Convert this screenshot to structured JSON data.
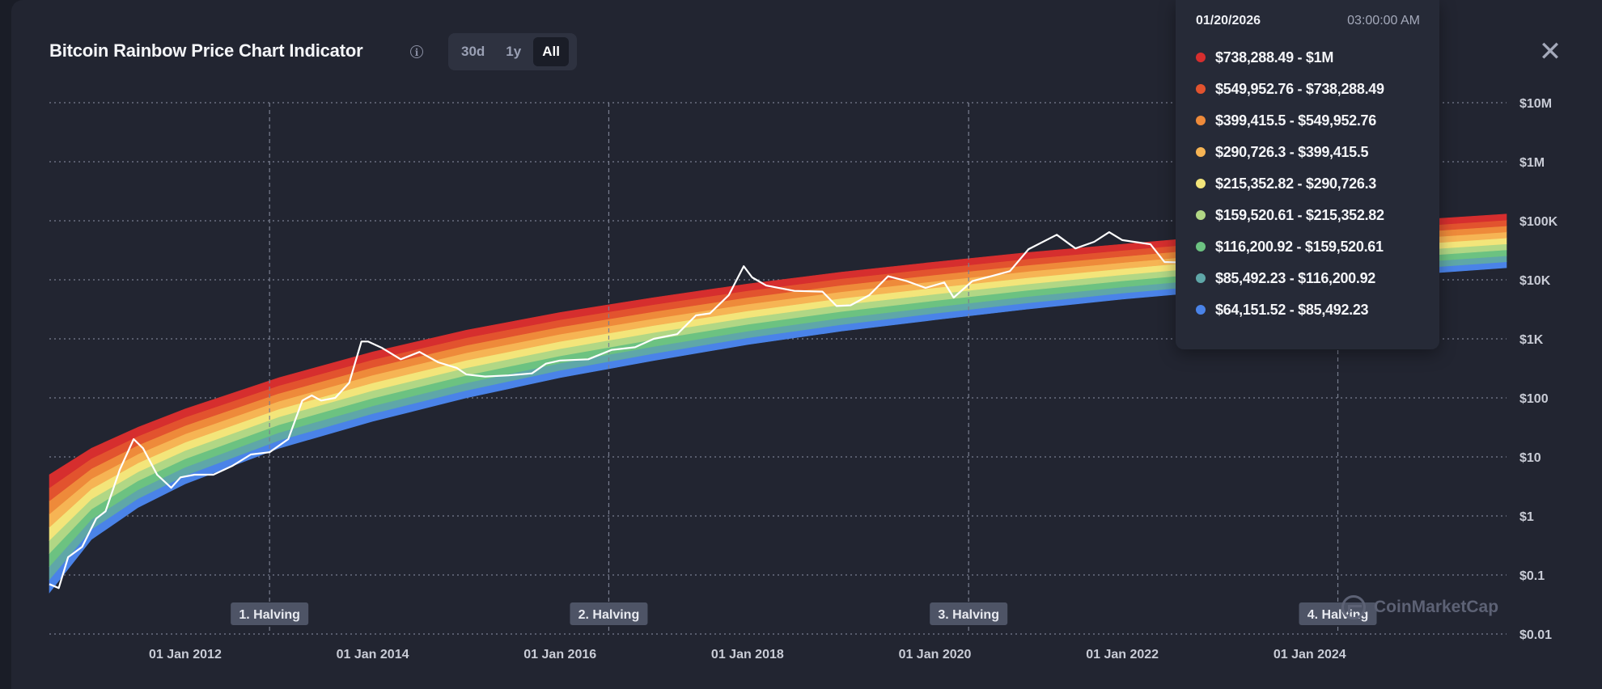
{
  "header": {
    "title": "Bitcoin Rainbow Price Chart Indicator",
    "range_options": [
      "30d",
      "1y",
      "All"
    ],
    "active_range": "All"
  },
  "tooltip": {
    "date": "01/20/2026",
    "time": "03:00:00 AM",
    "bands": [
      {
        "color": "#d62e2e",
        "label": "$738,288.49 - $1M"
      },
      {
        "color": "#e2532e",
        "label": "$549,952.76 - $738,288.49"
      },
      {
        "color": "#ee8a3a",
        "label": "$399,415.5 - $549,952.76"
      },
      {
        "color": "#f6b454",
        "label": "$290,726.3 - $399,415.5"
      },
      {
        "color": "#f3e57a",
        "label": "$215,352.82 - $290,726.3"
      },
      {
        "color": "#b1d785",
        "label": "$159,520.61 - $215,352.82"
      },
      {
        "color": "#6cc281",
        "label": "$116,200.92 - $159,520.61"
      },
      {
        "color": "#5fa7a8",
        "label": "$85,492.23 - $116,200.92"
      },
      {
        "color": "#4a83e8",
        "label": "$64,151.52 - $85,492.23"
      }
    ]
  },
  "watermark": "CoinMarketCap",
  "chart_data": {
    "type": "area",
    "y_scale": "log",
    "ylim": [
      0.01,
      10000000
    ],
    "y_ticks": [
      {
        "value": 10000000,
        "label": "$10M"
      },
      {
        "value": 1000000,
        "label": "$1M"
      },
      {
        "value": 100000,
        "label": "$100K"
      },
      {
        "value": 10000,
        "label": "$10K"
      },
      {
        "value": 1000,
        "label": "$1K"
      },
      {
        "value": 100,
        "label": "$100"
      },
      {
        "value": 10,
        "label": "$10"
      },
      {
        "value": 1,
        "label": "$1"
      },
      {
        "value": 0.1,
        "label": "$0.1"
      },
      {
        "value": 0.01,
        "label": "$0.01"
      }
    ],
    "xlim": [
      2010.55,
      2026.1
    ],
    "x_ticks": [
      {
        "value": 2012.0,
        "label": "01 Jan 2012"
      },
      {
        "value": 2014.0,
        "label": "01 Jan 2014"
      },
      {
        "value": 2016.0,
        "label": "01 Jan 2016"
      },
      {
        "value": 2018.0,
        "label": "01 Jan 2018"
      },
      {
        "value": 2020.0,
        "label": "01 Jan 2020"
      },
      {
        "value": 2022.0,
        "label": "01 Jan 2022"
      },
      {
        "value": 2024.0,
        "label": "01 Jan 2024"
      }
    ],
    "halvings": [
      {
        "x": 2012.9,
        "label": "1. Halving"
      },
      {
        "x": 2016.52,
        "label": "2. Halving"
      },
      {
        "x": 2020.36,
        "label": "3. Halving"
      },
      {
        "x": 2024.3,
        "label": "4. Halving"
      }
    ],
    "band_colors": [
      "#4a83e8",
      "#5fa7a8",
      "#6cc281",
      "#b1d785",
      "#f3e57a",
      "#f6b454",
      "#ee8a3a",
      "#e2532e",
      "#d62e2e"
    ],
    "band_lower_edge": [
      [
        2010.55,
        0.05
      ],
      [
        2011.0,
        0.4
      ],
      [
        2011.5,
        1.4
      ],
      [
        2012.0,
        3.5
      ],
      [
        2013.0,
        14
      ],
      [
        2014.0,
        40
      ],
      [
        2015.0,
        100
      ],
      [
        2016.0,
        220
      ],
      [
        2017.0,
        430
      ],
      [
        2018.0,
        800
      ],
      [
        2019.0,
        1350
      ],
      [
        2020.0,
        2100
      ],
      [
        2021.0,
        3200
      ],
      [
        2022.0,
        4700
      ],
      [
        2023.0,
        6500
      ],
      [
        2024.0,
        9000
      ],
      [
        2025.0,
        12000
      ],
      [
        2026.1,
        16000
      ]
    ],
    "band_top_edge": [
      [
        2010.55,
        5
      ],
      [
        2011.0,
        14
      ],
      [
        2011.5,
        32
      ],
      [
        2012.0,
        65
      ],
      [
        2013.0,
        220
      ],
      [
        2014.0,
        600
      ],
      [
        2015.0,
        1400
      ],
      [
        2016.0,
        2800
      ],
      [
        2017.0,
        5000
      ],
      [
        2018.0,
        8500
      ],
      [
        2019.0,
        13500
      ],
      [
        2020.0,
        20000
      ],
      [
        2021.0,
        29000
      ],
      [
        2022.0,
        40000
      ],
      [
        2023.0,
        55000
      ],
      [
        2024.0,
        75000
      ],
      [
        2025.0,
        100000
      ],
      [
        2026.1,
        130000
      ]
    ],
    "price_series": {
      "color": "#ffffff",
      "points": [
        [
          2010.55,
          0.07
        ],
        [
          2010.65,
          0.06
        ],
        [
          2010.75,
          0.2
        ],
        [
          2010.9,
          0.3
        ],
        [
          2011.05,
          0.9
        ],
        [
          2011.15,
          1.2
        ],
        [
          2011.3,
          6
        ],
        [
          2011.45,
          20
        ],
        [
          2011.55,
          14
        ],
        [
          2011.7,
          5
        ],
        [
          2011.85,
          3
        ],
        [
          2011.95,
          4.5
        ],
        [
          2012.1,
          5
        ],
        [
          2012.3,
          5
        ],
        [
          2012.5,
          7
        ],
        [
          2012.7,
          11
        ],
        [
          2012.9,
          12
        ],
        [
          2013.1,
          20
        ],
        [
          2013.25,
          90
        ],
        [
          2013.35,
          110
        ],
        [
          2013.45,
          90
        ],
        [
          2013.6,
          100
        ],
        [
          2013.75,
          180
        ],
        [
          2013.88,
          900
        ],
        [
          2013.95,
          900
        ],
        [
          2014.1,
          700
        ],
        [
          2014.3,
          450
        ],
        [
          2014.5,
          600
        ],
        [
          2014.7,
          400
        ],
        [
          2014.9,
          320
        ],
        [
          2015.0,
          250
        ],
        [
          2015.2,
          230
        ],
        [
          2015.45,
          240
        ],
        [
          2015.7,
          260
        ],
        [
          2015.85,
          380
        ],
        [
          2016.0,
          430
        ],
        [
          2016.3,
          450
        ],
        [
          2016.55,
          650
        ],
        [
          2016.8,
          720
        ],
        [
          2017.0,
          1000
        ],
        [
          2017.25,
          1200
        ],
        [
          2017.45,
          2500
        ],
        [
          2017.6,
          2700
        ],
        [
          2017.8,
          5500
        ],
        [
          2017.96,
          17000
        ],
        [
          2018.05,
          11000
        ],
        [
          2018.2,
          8000
        ],
        [
          2018.5,
          6500
        ],
        [
          2018.8,
          6300
        ],
        [
          2018.95,
          3600
        ],
        [
          2019.1,
          3700
        ],
        [
          2019.3,
          5500
        ],
        [
          2019.5,
          11500
        ],
        [
          2019.7,
          9500
        ],
        [
          2019.9,
          7300
        ],
        [
          2020.1,
          9000
        ],
        [
          2020.2,
          5000
        ],
        [
          2020.4,
          9500
        ],
        [
          2020.6,
          11500
        ],
        [
          2020.8,
          14000
        ],
        [
          2021.0,
          33000
        ],
        [
          2021.3,
          58000
        ],
        [
          2021.5,
          34000
        ],
        [
          2021.7,
          44000
        ],
        [
          2021.86,
          64000
        ],
        [
          2022.0,
          47000
        ],
        [
          2022.3,
          40000
        ],
        [
          2022.45,
          20000
        ],
        [
          2022.7,
          19500
        ],
        [
          2022.85,
          16500
        ],
        [
          2023.0,
          16800
        ]
      ]
    }
  }
}
